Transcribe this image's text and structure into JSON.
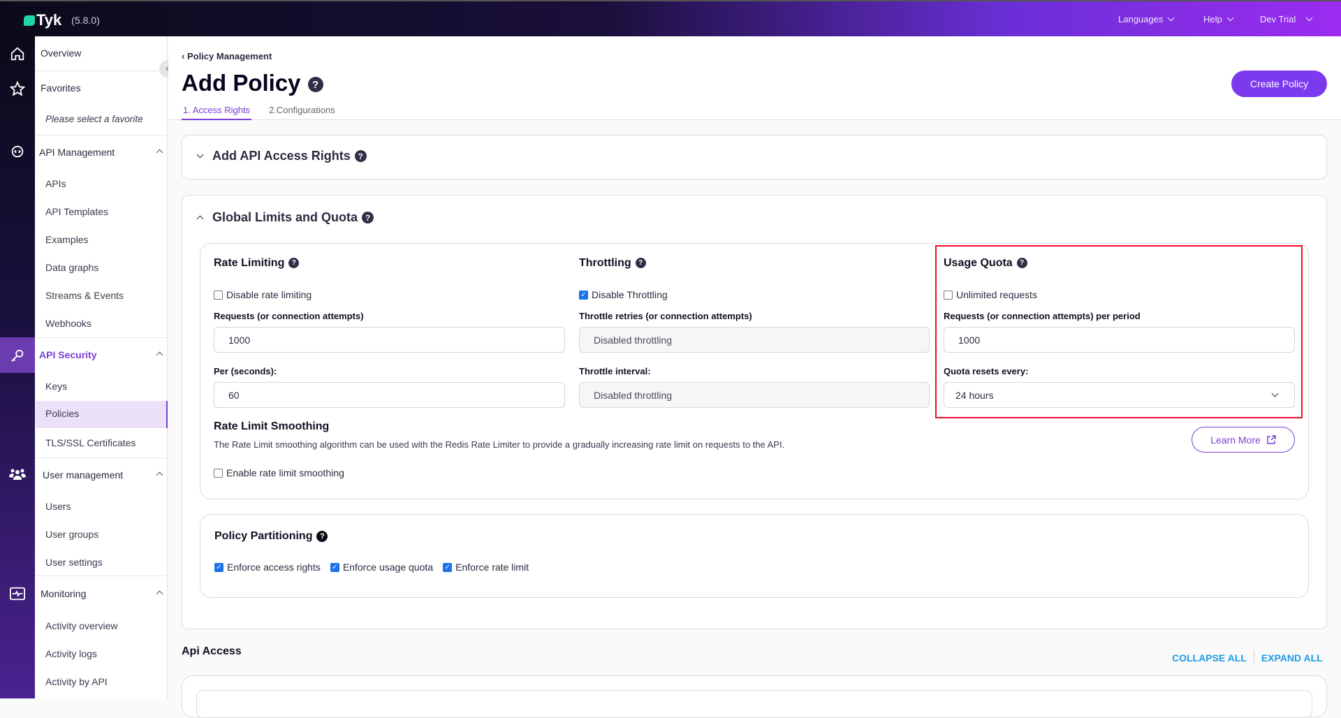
{
  "header": {
    "brand": "Tyk",
    "version": "(5.8.0)",
    "nav": [
      "Languages",
      "Help",
      "Dev Trial"
    ]
  },
  "sidebar": {
    "overview": "Overview",
    "favorites": "Favorites",
    "favorites_empty": "Please select a favorite",
    "sections": [
      {
        "title": "API Management",
        "items": [
          "APIs",
          "API Templates",
          "Examples",
          "Data graphs",
          "Streams & Events",
          "Webhooks"
        ]
      },
      {
        "title": "API Security",
        "items": [
          "Keys",
          "Policies",
          "TLS/SSL Certificates"
        ]
      },
      {
        "title": "User management",
        "items": [
          "Users",
          "User groups",
          "User settings"
        ]
      },
      {
        "title": "Monitoring",
        "items": [
          "Activity overview",
          "Activity logs",
          "Activity by API"
        ]
      }
    ],
    "active_item": "Policies",
    "accent": "#7a3fd6"
  },
  "page": {
    "breadcrumb": "Policy Management",
    "title": "Add Policy",
    "create_button": "Create Policy",
    "tabs": [
      "1. Access Rights",
      "2.Configurations"
    ],
    "access_rights_title": "Add API Access Rights",
    "global_title": "Global Limits and Quota",
    "rate": {
      "title": "Rate Limiting",
      "disable_label": "Disable rate limiting",
      "disable_checked": false,
      "requests_label": "Requests (or connection attempts)",
      "requests_value": "1000",
      "per_label": "Per (seconds):",
      "per_value": "60"
    },
    "throttle": {
      "title": "Throttling",
      "disable_label": "Disable Throttling",
      "disable_checked": true,
      "retries_label": "Throttle retries (or connection attempts)",
      "retries_value": "Disabled throttling",
      "interval_label": "Throttle interval:",
      "interval_value": "Disabled throttling"
    },
    "quota": {
      "title": "Usage Quota",
      "unlimited_label": "Unlimited requests",
      "unlimited_checked": false,
      "requests_label": "Requests (or connection attempts) per period",
      "requests_value": "1000",
      "reset_label": "Quota resets every:",
      "reset_value": "24 hours"
    },
    "smoothing": {
      "title": "Rate Limit Smoothing",
      "description": "The Rate Limit smoothing algorithm can be used with the Redis Rate Limiter to provide a gradually increasing rate limit on requests to the API.",
      "enable_label": "Enable rate limit smoothing",
      "learn_more": "Learn More"
    },
    "partitioning": {
      "title": "Policy Partitioning",
      "options": [
        "Enforce access rights",
        "Enforce usage quota",
        "Enforce rate limit"
      ]
    },
    "api_access": {
      "title": "Api Access",
      "collapse": "COLLAPSE ALL",
      "expand": "EXPAND ALL"
    }
  }
}
